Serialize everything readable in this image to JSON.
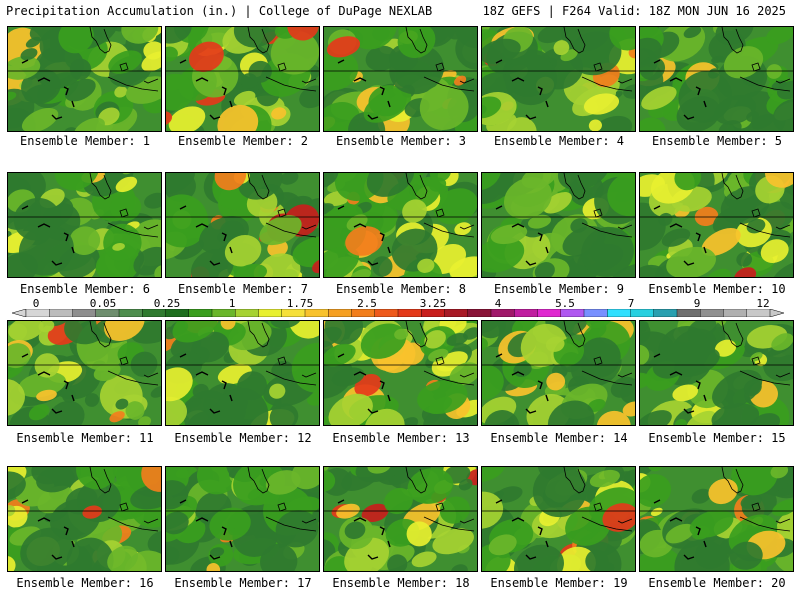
{
  "header": {
    "left": "Precipitation Accumulation (in.) | College of DuPage NEXLAB",
    "right": "18Z GEFS | F264 Valid: 18Z MON JUN 16 2025"
  },
  "colorbar": {
    "labels": [
      "0",
      "0.05",
      "0.25",
      "1",
      "1.75",
      "2.5",
      "3.25",
      "4",
      "5.5",
      "7",
      "9",
      "12"
    ],
    "colors": [
      "#d6d6d6",
      "#bcbcbc",
      "#8e8e8e",
      "#6e8e6e",
      "#4e8e4e",
      "#2f7a2f",
      "#1e6e1e",
      "#3a9e1e",
      "#6ab62a",
      "#a6d232",
      "#e8f030",
      "#f6e03a",
      "#f8c22c",
      "#f6a022",
      "#f27e1c",
      "#ee5a1c",
      "#e43a1a",
      "#c81e1c",
      "#a81a26",
      "#8a1438",
      "#a0186a",
      "#c01ea0",
      "#e028d0",
      "#b058f0",
      "#7890ff",
      "#30e0ff",
      "#28d0e0",
      "#2aa0b0",
      "#707070",
      "#909090",
      "#b0b0b0",
      "#c8c8c8"
    ]
  },
  "panels": [
    {
      "label": "Ensemble Member: 1",
      "intensity": 0.25
    },
    {
      "label": "Ensemble Member: 2",
      "intensity": 0.8
    },
    {
      "label": "Ensemble Member: 3",
      "intensity": 0.55
    },
    {
      "label": "Ensemble Member: 4",
      "intensity": 0.8
    },
    {
      "label": "Ensemble Member: 5",
      "intensity": 0.3
    },
    {
      "label": "Ensemble Member: 6",
      "intensity": 0.3
    },
    {
      "label": "Ensemble Member: 7",
      "intensity": 0.85
    },
    {
      "label": "Ensemble Member: 8",
      "intensity": 0.7
    },
    {
      "label": "Ensemble Member: 9",
      "intensity": 0.3
    },
    {
      "label": "Ensemble Member: 10",
      "intensity": 0.65
    },
    {
      "label": "Ensemble Member: 11",
      "intensity": 0.5
    },
    {
      "label": "Ensemble Member: 12",
      "intensity": 0.45
    },
    {
      "label": "Ensemble Member: 13",
      "intensity": 0.75
    },
    {
      "label": "Ensemble Member: 14",
      "intensity": 0.6
    },
    {
      "label": "Ensemble Member: 15",
      "intensity": 0.5
    },
    {
      "label": "Ensemble Member: 16",
      "intensity": 0.6
    },
    {
      "label": "Ensemble Member: 17",
      "intensity": 0.45
    },
    {
      "label": "Ensemble Member: 18",
      "intensity": 0.65
    },
    {
      "label": "Ensemble Member: 19",
      "intensity": 0.9
    },
    {
      "label": "Ensemble Member: 20",
      "intensity": 0.85
    }
  ]
}
